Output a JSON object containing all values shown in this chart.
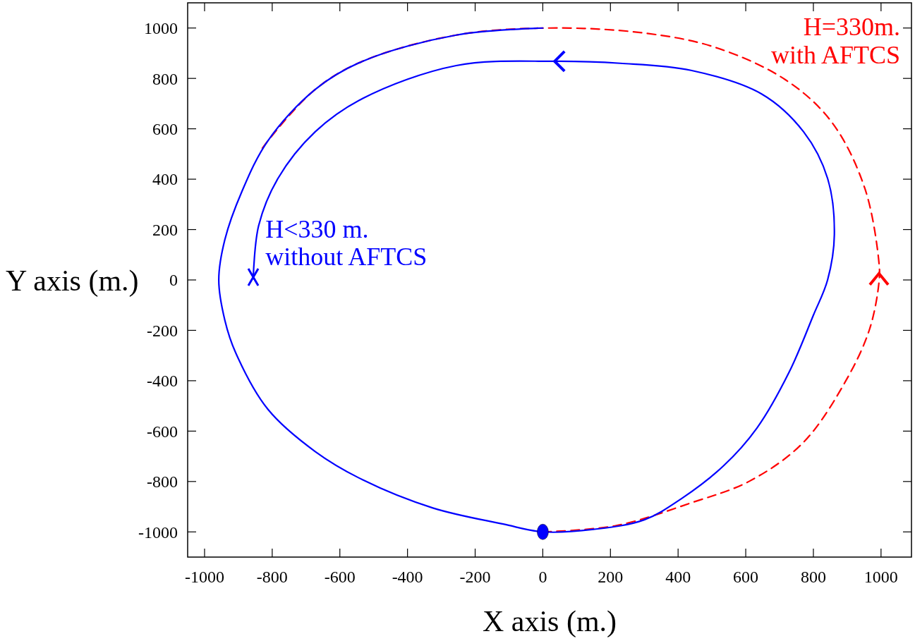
{
  "chart_data": {
    "type": "line",
    "xlabel": "X axis (m.)",
    "ylabel": "Y axis (m.)",
    "xlim": [
      -1050,
      1090
    ],
    "ylim": [
      -1100,
      1100
    ],
    "xticks": [
      -1000,
      -800,
      -600,
      -400,
      -200,
      0,
      200,
      400,
      600,
      800,
      1000
    ],
    "yticks": [
      -1000,
      -800,
      -600,
      -400,
      -200,
      0,
      200,
      400,
      600,
      800,
      1000
    ],
    "grid": false,
    "series": [
      {
        "color": "#ff0000",
        "line_style": "dashed",
        "x": [
          0,
          217,
          438,
          612,
          771,
          896,
          966,
          994,
          994,
          952,
          854,
          717,
          508,
          300,
          21,
          -256,
          -533,
          -673,
          -813,
          -833
        ],
        "values": [
          -1000,
          -975,
          -885,
          -798,
          -644,
          -400,
          -196,
          -8,
          67,
          364,
          627,
          795,
          924,
          980,
          1000,
          972,
          868,
          756,
          552,
          515
        ]
      },
      {
        "color": "#0000ff",
        "line_style": "solid",
        "x": [
          0,
          -256,
          -533,
          -673,
          -813,
          -890,
          -940,
          -958,
          -940,
          -908,
          -813,
          -673,
          -533,
          -325,
          -117,
          0,
          150,
          300,
          410,
          535,
          633,
          729,
          800,
          842,
          862,
          842,
          771,
          646,
          438,
          229,
          35,
          -256,
          -533,
          -673,
          -783,
          -840,
          -856
        ],
        "values": [
          1000,
          972,
          868,
          756,
          552,
          350,
          160,
          0,
          -160,
          -289,
          -513,
          -681,
          -793,
          -905,
          -969,
          -1000,
          -990,
          -952,
          -868,
          -737,
          -588,
          -364,
          -140,
          0,
          179,
          403,
          588,
          739,
          832,
          860,
          868,
          851,
          720,
          588,
          403,
          216,
          11
        ]
      },
      {
        "type": "scatter",
        "color": "#0000ff",
        "marker": "circle",
        "x": [
          0
        ],
        "values": [
          -1000
        ]
      },
      {
        "type": "scatter",
        "color": "#0000ff",
        "marker": "cross",
        "x": [
          -856
        ],
        "values": [
          11
        ]
      }
    ],
    "annotations": [
      "H=330m.\nwith AFTCS",
      "H<330 m.\nwithout AFTCS"
    ]
  }
}
